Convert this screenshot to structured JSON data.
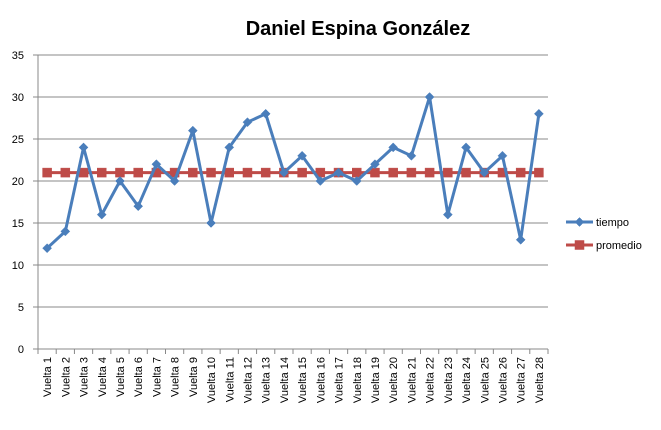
{
  "chart_data": {
    "type": "line",
    "title": "Daniel Espina González",
    "xlabel": "",
    "ylabel": "",
    "categories": [
      "Vuelta 1",
      "Vuelta 2",
      "Vuelta 3",
      "Vuelta 4",
      "Vuelta 5",
      "Vuelta 6",
      "Vuelta 7",
      "Vuelta 8",
      "Vuelta 9",
      "Vuelta 10",
      "Vuelta 11",
      "Vuelta 12",
      "Vuelta 13",
      "Vuelta 14",
      "Vuelta 15",
      "Vuelta 16",
      "Vuelta 17",
      "Vuelta 18",
      "Vuelta 19",
      "Vuelta 20",
      "Vuelta 21",
      "Vuelta 22",
      "Vuelta 23",
      "Vuelta 24",
      "Vuelta 25",
      "Vuelta 26",
      "Vuelta 27",
      "Vuelta 28"
    ],
    "series": [
      {
        "name": "tiempo",
        "color": "#4a7ebb",
        "marker": "diamond",
        "values": [
          12,
          14,
          24,
          16,
          20,
          17,
          22,
          20,
          26,
          15,
          24,
          27,
          28,
          21,
          23,
          20,
          21,
          20,
          22,
          24,
          23,
          30,
          16,
          24,
          21,
          23,
          13,
          28
        ]
      },
      {
        "name": "promedio",
        "color": "#be4b48",
        "marker": "square",
        "values": [
          21,
          21,
          21,
          21,
          21,
          21,
          21,
          21,
          21,
          21,
          21,
          21,
          21,
          21,
          21,
          21,
          21,
          21,
          21,
          21,
          21,
          21,
          21,
          21,
          21,
          21,
          21,
          21
        ]
      }
    ],
    "ylim": [
      0,
      35
    ],
    "yticks": [
      "0",
      "5",
      "10",
      "15",
      "20",
      "25",
      "30",
      "35"
    ],
    "grid": true,
    "legend_position": "right"
  }
}
